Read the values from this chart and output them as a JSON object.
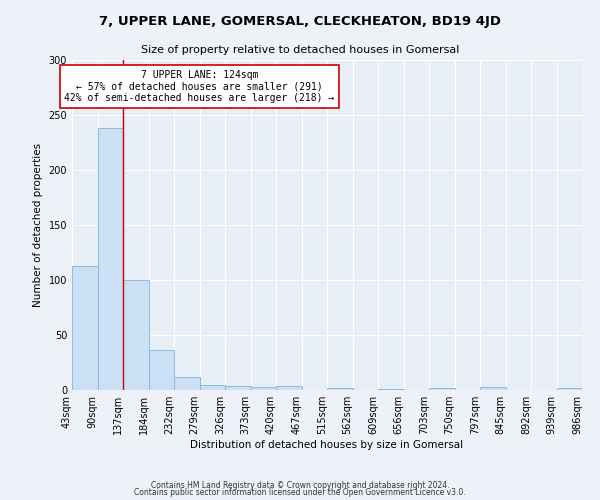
{
  "title": "7, UPPER LANE, GOMERSAL, CLECKHEATON, BD19 4JD",
  "subtitle": "Size of property relative to detached houses in Gomersal",
  "xlabel": "Distribution of detached houses by size in Gomersal",
  "ylabel": "Number of detached properties",
  "bar_values": [
    113,
    238,
    100,
    36,
    12,
    5,
    4,
    3,
    4,
    0,
    2,
    0,
    1,
    0,
    2,
    0,
    3,
    0,
    0,
    2
  ],
  "categories": [
    "43sqm",
    "90sqm",
    "137sqm",
    "184sqm",
    "232sqm",
    "279sqm",
    "326sqm",
    "373sqm",
    "420sqm",
    "467sqm",
    "515sqm",
    "562sqm",
    "609sqm",
    "656sqm",
    "703sqm",
    "750sqm",
    "797sqm",
    "845sqm",
    "892sqm",
    "939sqm",
    "986sqm"
  ],
  "bar_color": "#cce0f5",
  "bar_edge_color": "#7ab8d9",
  "vline_x": 2,
  "vline_color": "#cc0000",
  "annotation_text": "7 UPPER LANE: 124sqm\n← 57% of detached houses are smaller (291)\n42% of semi-detached houses are larger (218) →",
  "annotation_box_color": "#ffffff",
  "annotation_box_edge": "#cc0000",
  "ylim": [
    0,
    300
  ],
  "yticks": [
    0,
    50,
    100,
    150,
    200,
    250,
    300
  ],
  "footer1": "Contains HM Land Registry data © Crown copyright and database right 2024.",
  "footer2": "Contains public sector information licensed under the Open Government Licence v3.0.",
  "bg_color": "#eef2f8",
  "plot_bg_color": "#e8eef6"
}
